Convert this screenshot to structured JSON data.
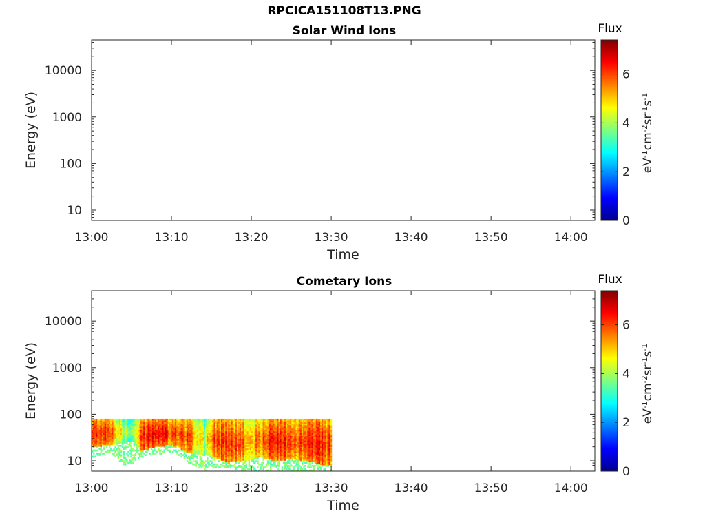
{
  "figure": {
    "title": "RPCICA151108T13.PNG"
  },
  "chart_data": [
    {
      "type": "heatmap",
      "title": "Solar Wind Ions",
      "xlabel": "Time",
      "ylabel": "Energy (eV)",
      "x_ticks": [
        "13:00",
        "13:10",
        "13:20",
        "13:30",
        "13:40",
        "13:50",
        "14:00"
      ],
      "x_range": [
        "13:00",
        "14:03"
      ],
      "y_scale": "log",
      "y_ticks": [
        10,
        100,
        1000,
        10000
      ],
      "y_tick_labels": [
        "10",
        "100",
        "1000",
        "10000"
      ],
      "ylim": [
        6,
        45000
      ],
      "colorbar": {
        "label": "Flux",
        "unit_label": "eV-1cm-2sr-1s-1",
        "ticks": [
          0,
          2,
          4,
          6
        ],
        "tick_labels": [
          "0",
          "2",
          "4",
          "6"
        ],
        "range": [
          0,
          7.4
        ],
        "colormap": "jet"
      },
      "data": []
    },
    {
      "type": "heatmap",
      "title": "Cometary Ions",
      "xlabel": "Time",
      "ylabel": "Energy (eV)",
      "x_ticks": [
        "13:00",
        "13:10",
        "13:20",
        "13:30",
        "13:40",
        "13:50",
        "14:00"
      ],
      "x_range": [
        "13:00",
        "14:03"
      ],
      "y_scale": "log",
      "y_ticks": [
        10,
        100,
        1000,
        10000
      ],
      "y_tick_labels": [
        "10",
        "100",
        "1000",
        "10000"
      ],
      "ylim": [
        6,
        45000
      ],
      "colorbar": {
        "label": "Flux",
        "unit_label": "eV-1cm-2sr-1s-1",
        "ticks": [
          0,
          2,
          4,
          6
        ],
        "tick_labels": [
          "0",
          "2",
          "4",
          "6"
        ],
        "range": [
          0,
          7.4
        ],
        "colormap": "jet"
      },
      "data": {
        "time_range": [
          "13:00",
          "13:30"
        ],
        "energy_max": 80,
        "profile": [
          {
            "time": "13:00",
            "low_edge": 20,
            "fill_low": 12,
            "peak": 6.5
          },
          {
            "time": "13:02",
            "low_edge": 22,
            "fill_low": 14,
            "peak": 6.6
          },
          {
            "time": "13:04",
            "low_edge": 24,
            "fill_low": 8,
            "peak": 4.6
          },
          {
            "time": "13:05",
            "low_edge": 26,
            "fill_low": 9,
            "peak": 4.4
          },
          {
            "time": "13:06",
            "low_edge": 16,
            "fill_low": 12,
            "peak": 6.4
          },
          {
            "time": "13:08",
            "low_edge": 20,
            "fill_low": 14,
            "peak": 6.8
          },
          {
            "time": "13:10",
            "low_edge": 22,
            "fill_low": 15,
            "peak": 6.5
          },
          {
            "time": "13:12",
            "low_edge": 15,
            "fill_low": 9,
            "peak": 6.3
          },
          {
            "time": "13:14",
            "low_edge": 14,
            "fill_low": 6,
            "peak": 4.6
          },
          {
            "time": "13:15",
            "low_edge": 12,
            "fill_low": 7,
            "peak": 6.2
          },
          {
            "time": "13:17",
            "low_edge": 9,
            "fill_low": 7,
            "peak": 6.7
          },
          {
            "time": "13:19",
            "low_edge": 10,
            "fill_low": 6,
            "peak": 6.0
          },
          {
            "time": "13:21",
            "low_edge": 12,
            "fill_low": 6,
            "peak": 5.8
          },
          {
            "time": "13:23",
            "low_edge": 10,
            "fill_low": 6,
            "peak": 6.9
          },
          {
            "time": "13:25",
            "low_edge": 11,
            "fill_low": 6,
            "peak": 6.2
          },
          {
            "time": "13:27",
            "low_edge": 10,
            "fill_low": 6,
            "peak": 6.6
          },
          {
            "time": "13:29",
            "low_edge": 8,
            "fill_low": 6,
            "peak": 6.5
          }
        ]
      }
    }
  ]
}
